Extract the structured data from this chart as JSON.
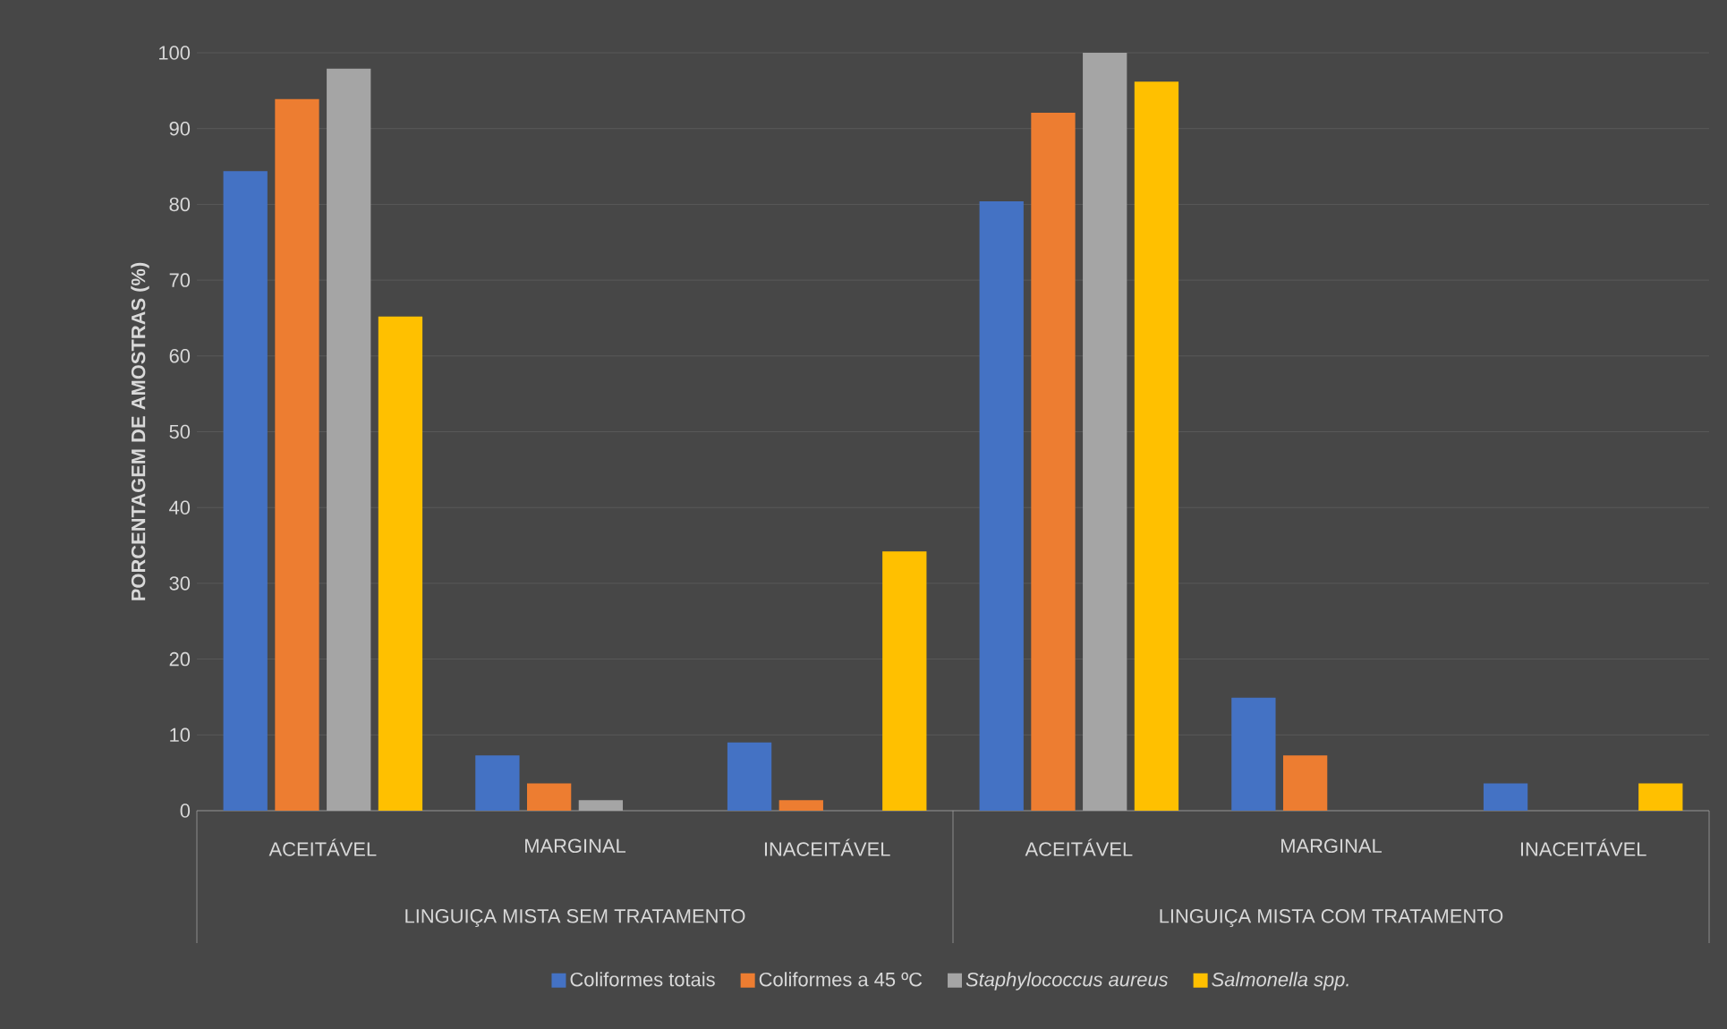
{
  "chart_data": {
    "type": "bar",
    "ylabel": "PORCENTAGEM DE AMOSTRAS (%)",
    "categories": [
      "ACEITÁVEL",
      "MARGINAL",
      "INACEITÁVEL",
      "ACEITÁVEL",
      "MARGINAL",
      "INACEITÁVEL"
    ],
    "series": [
      {
        "name": "Coliformes totais",
        "color": "#4472c4",
        "values": [
          84.4,
          7.3,
          9.0,
          80.4,
          14.9,
          3.6
        ]
      },
      {
        "name": "Coliformes a 45 ºC",
        "color": "#ed7d31",
        "values": [
          93.9,
          3.6,
          1.4,
          92.1,
          7.3,
          0
        ]
      },
      {
        "name": "*Staphylococcus aureus*",
        "color": "#a5a5a5",
        "values": [
          97.9,
          1.4,
          0,
          100,
          0,
          0
        ]
      },
      {
        "name": "*Salmonella spp.*",
        "color": "#ffc000",
        "values": [
          65.2,
          0,
          34.2,
          96.2,
          0,
          3.6
        ]
      }
    ],
    "annotations": [
      "LINGUIÇA MISTA SEM TRATAMENTO",
      "LINGUIÇA MISTA COM TRATAMENTO"
    ],
    "ylim": [
      0,
      100
    ],
    "yticks": [
      0,
      10,
      20,
      30,
      40,
      50,
      60,
      70,
      80,
      90,
      100
    ],
    "grid": "y",
    "legend": "bottom"
  }
}
